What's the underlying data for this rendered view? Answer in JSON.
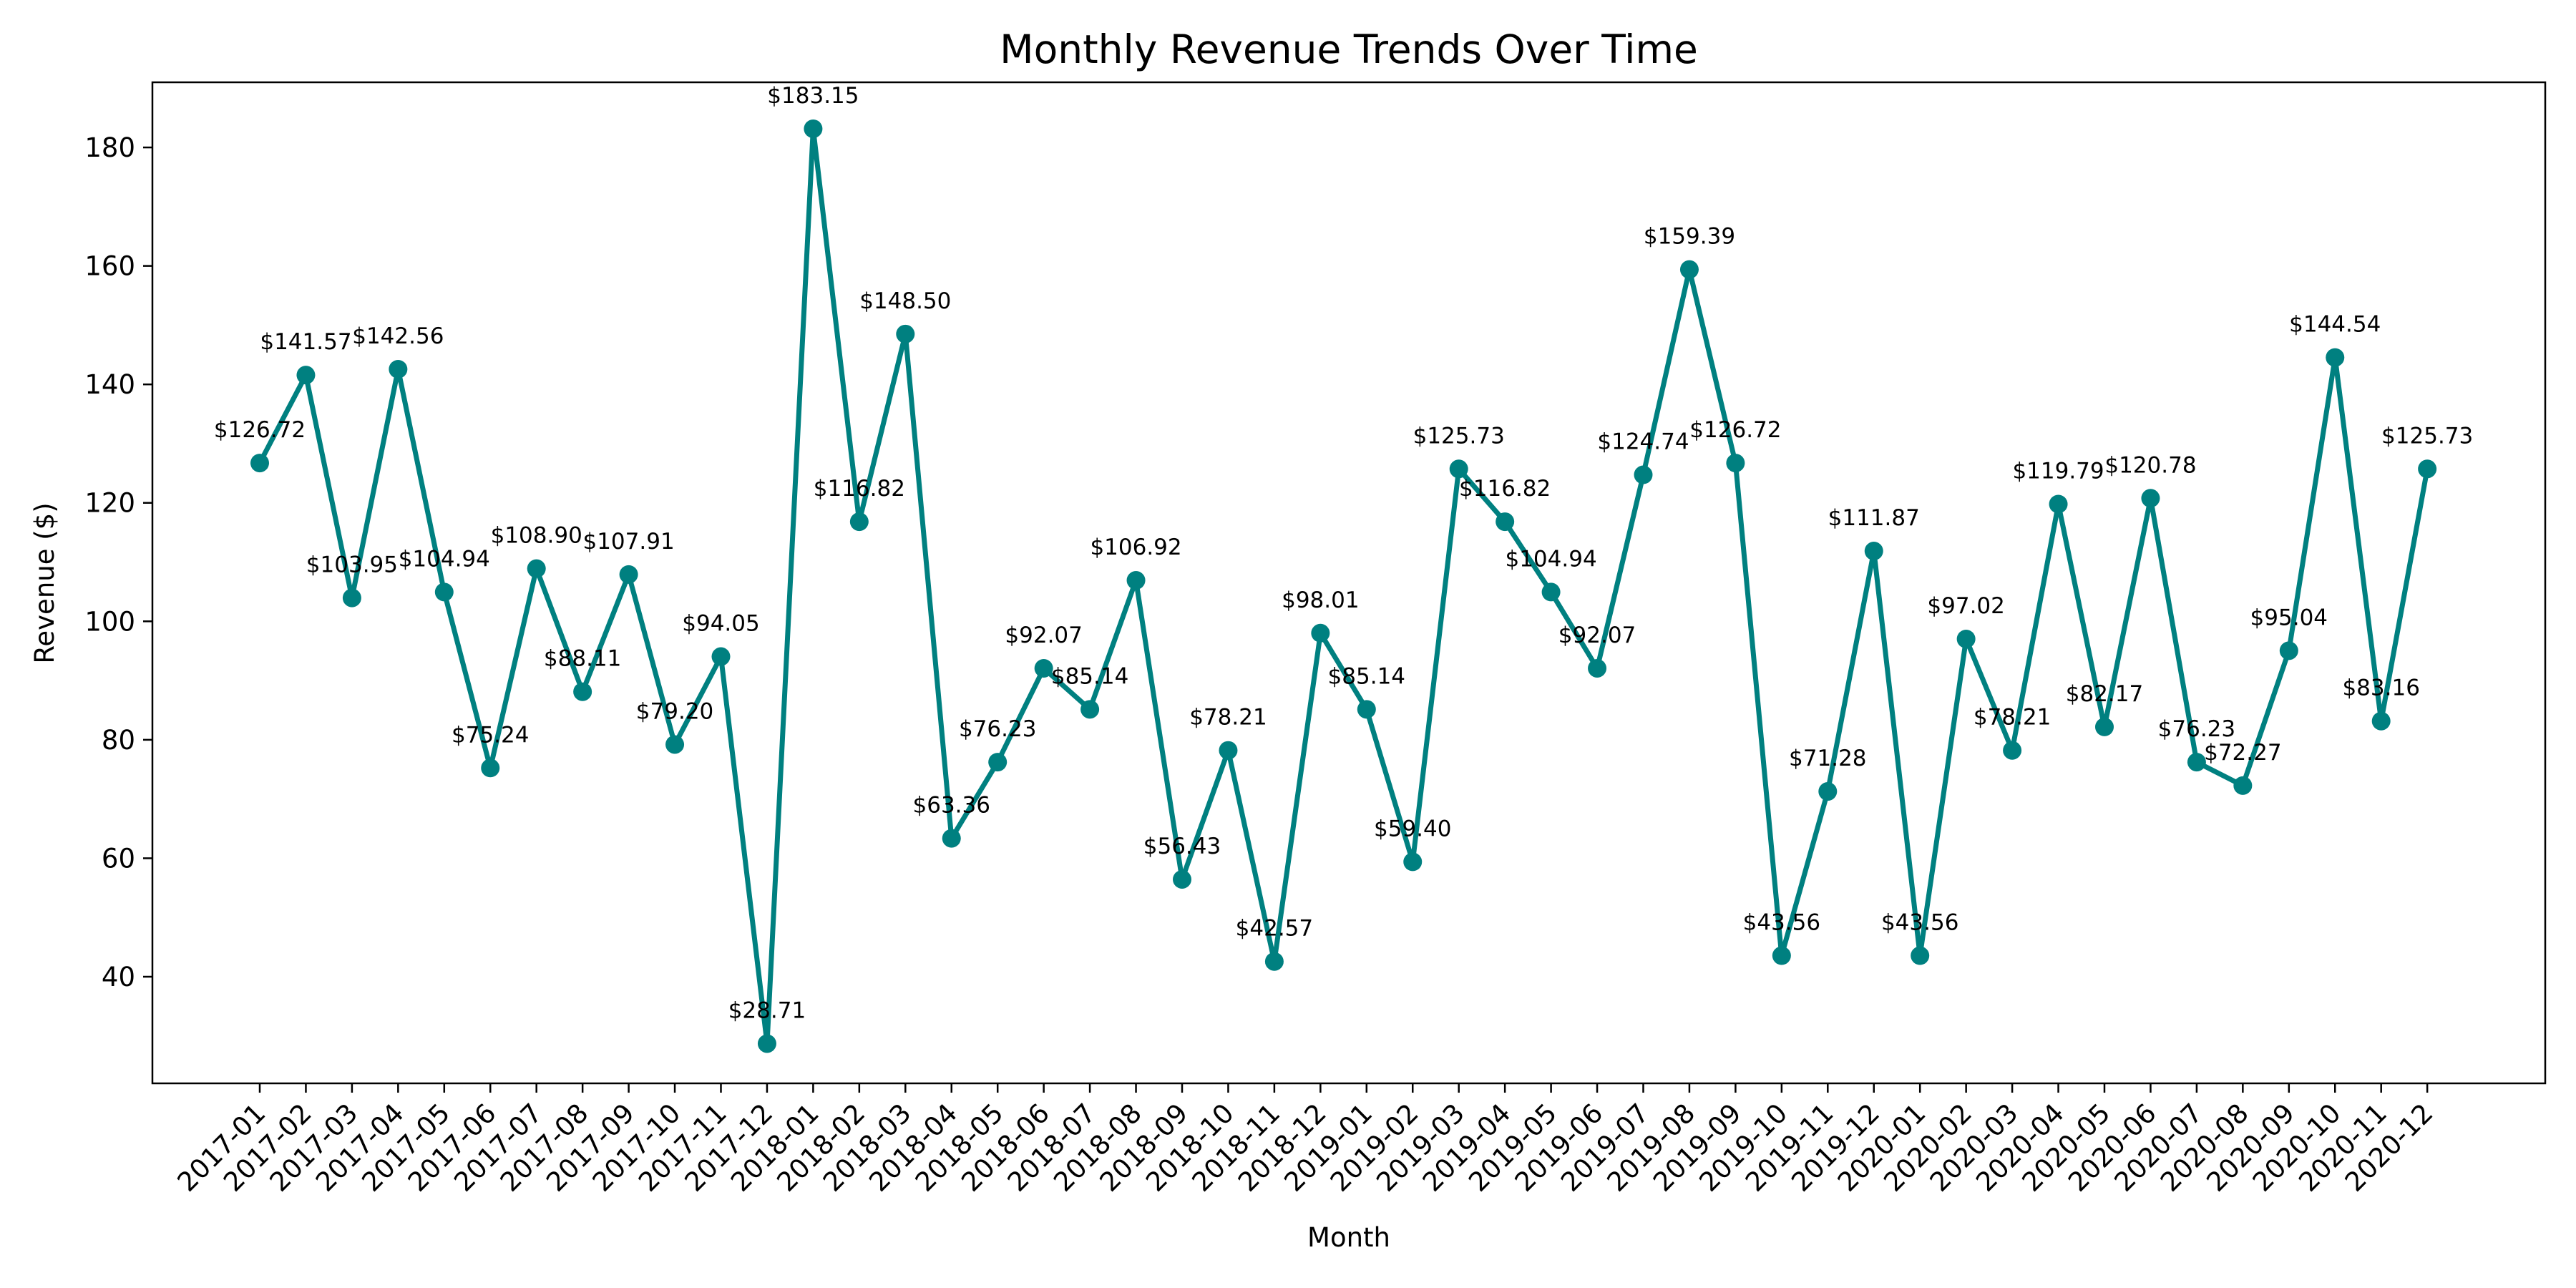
{
  "chart_data": {
    "type": "line",
    "title": "Monthly Revenue Trends Over Time",
    "xlabel": "Month",
    "ylabel": "Revenue ($)",
    "ylim": [
      22,
      191
    ],
    "yticks": [
      40,
      60,
      80,
      100,
      120,
      140,
      160,
      180
    ],
    "grid": false,
    "legend": "none",
    "line_color": "#008080",
    "x": [
      "2017-01",
      "2017-02",
      "2017-03",
      "2017-04",
      "2017-05",
      "2017-06",
      "2017-07",
      "2017-08",
      "2017-09",
      "2017-10",
      "2017-11",
      "2017-12",
      "2018-01",
      "2018-02",
      "2018-03",
      "2018-04",
      "2018-05",
      "2018-06",
      "2018-07",
      "2018-08",
      "2018-09",
      "2018-10",
      "2018-11",
      "2018-12",
      "2019-01",
      "2019-02",
      "2019-03",
      "2019-04",
      "2019-05",
      "2019-06",
      "2019-07",
      "2019-08",
      "2019-09",
      "2019-10",
      "2019-11",
      "2019-12",
      "2020-01",
      "2020-02",
      "2020-03",
      "2020-04",
      "2020-05",
      "2020-06",
      "2020-07",
      "2020-08",
      "2020-09",
      "2020-10",
      "2020-11",
      "2020-12"
    ],
    "values": [
      126.72,
      141.57,
      103.95,
      142.56,
      104.94,
      75.24,
      108.9,
      88.11,
      107.91,
      79.2,
      94.05,
      28.71,
      183.15,
      116.82,
      148.5,
      63.36,
      76.23,
      92.07,
      85.14,
      106.92,
      56.43,
      78.21,
      42.57,
      98.01,
      85.14,
      59.4,
      125.73,
      116.82,
      104.94,
      92.07,
      124.74,
      159.39,
      126.72,
      43.56,
      71.28,
      111.87,
      43.56,
      97.02,
      78.21,
      119.79,
      82.17,
      120.78,
      76.23,
      72.27,
      95.04,
      144.54,
      83.16,
      125.73
    ],
    "value_labels": [
      "$126.72",
      "$141.57",
      "$103.95",
      "$142.56",
      "$104.94",
      "$75.24",
      "$108.90",
      "$88.11",
      "$107.91",
      "$79.20",
      "$94.05",
      "$28.71",
      "$183.15",
      "$116.82",
      "$148.50",
      "$63.36",
      "$76.23",
      "$92.07",
      "$85.14",
      "$106.92",
      "$56.43",
      "$78.21",
      "$42.57",
      "$98.01",
      "$85.14",
      "$59.40",
      "$125.73",
      "$116.82",
      "$104.94",
      "$92.07",
      "$124.74",
      "$159.39",
      "$126.72",
      "$43.56",
      "$71.28",
      "$111.87",
      "$43.56",
      "$97.02",
      "$78.21",
      "$119.79",
      "$82.17",
      "$120.78",
      "$76.23",
      "$72.27",
      "$95.04",
      "$144.54",
      "$83.16",
      "$125.73"
    ]
  }
}
